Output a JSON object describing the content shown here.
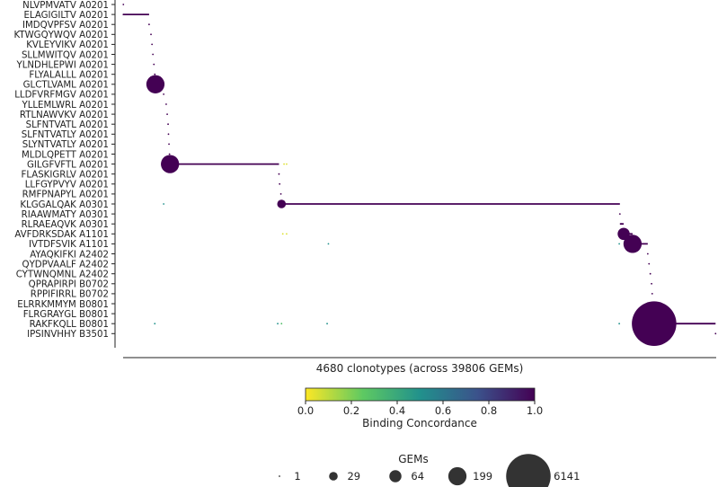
{
  "chart_data": {
    "type": "scatter",
    "xlabel": "4680 clonotypes (across 39806 GEMs)",
    "x_range": [
      0,
      4680
    ],
    "categories": [
      "NLVPMVATV A0201",
      "ELAGIGILTV A0201",
      "IMDQVPFSV A0201",
      "KTWGQYWQV A0201",
      "KVLEYVIKV A0201",
      "SLLMWITQV A0201",
      "YLNDHLEPWI A0201",
      "FLYALALLL A0201",
      "GLCTLVAML A0201",
      "LLDFVRFMGV A0201",
      "YLLEMLWRL A0201",
      "RTLNAWVKV A0201",
      "SLFNTVATL A0201",
      "SLFNTVATLY A0201",
      "SLYNTVATLY A0201",
      "MLDLQPETT A0201",
      "GILGFVFTL A0201",
      "FLASKIGRLV A0201",
      "LLFGYPVYV A0201",
      "RMFPNAPYL A0201",
      "KLGGALQAK A0301",
      "RIAAWMATY A0301",
      "RLRAEAQVK A0301",
      "AVFDRKSDAK A1101",
      "IVTDFSVIK A1101",
      "AYAQKIFKI A2402",
      "QYDPVAALF A2402",
      "CYTWNQMNL A2402",
      "QPRAPIRPI B0702",
      "RPPIFIRRL B0702",
      "ELRRKMMYM B0801",
      "FLRGRAYGL B0801",
      "RAKFKQLL B0801",
      "IPSINVHHY B3501"
    ],
    "points": [
      {
        "epitope": "NLVPMVATV A0201",
        "x": 2,
        "gems": 1,
        "concordance": 1.0
      },
      {
        "epitope": "ELAGIGILTV A0201",
        "x": 2,
        "gems": 1,
        "concordance": 1.0
      },
      {
        "epitope": "IMDQVPFSV A0201",
        "x": 205,
        "gems": 1,
        "concordance": 1.0
      },
      {
        "epitope": "KTWGQYWQV A0201",
        "x": 220,
        "gems": 1,
        "concordance": 1.0
      },
      {
        "epitope": "KVLEYVIKV A0201",
        "x": 228,
        "gems": 1,
        "concordance": 1.0
      },
      {
        "epitope": "SLLMWITQV A0201",
        "x": 235,
        "gems": 1,
        "concordance": 1.0
      },
      {
        "epitope": "YLNDHLEPWI A0201",
        "x": 243,
        "gems": 1,
        "concordance": 1.0
      },
      {
        "epitope": "FLYALALLL A0201",
        "x": 250,
        "gems": 1,
        "concordance": 1.0
      },
      {
        "epitope": "GLCTLVAML A0201",
        "x": 255,
        "gems": 199,
        "concordance": 1.0
      },
      {
        "epitope": "LLDFVRFMGV A0201",
        "x": 320,
        "gems": 1,
        "concordance": 1.0
      },
      {
        "epitope": "YLLEMLWRL A0201",
        "x": 340,
        "gems": 1,
        "concordance": 1.0
      },
      {
        "epitope": "RTLNAWVKV A0201",
        "x": 348,
        "gems": 1,
        "concordance": 1.0
      },
      {
        "epitope": "SLFNTVATL A0201",
        "x": 355,
        "gems": 1,
        "concordance": 1.0
      },
      {
        "epitope": "SLFNTVATLY A0201",
        "x": 358,
        "gems": 1,
        "concordance": 1.0
      },
      {
        "epitope": "SLYNTVATLY A0201",
        "x": 362,
        "gems": 1,
        "concordance": 1.0
      },
      {
        "epitope": "MLDLQPETT A0201",
        "x": 366,
        "gems": 1,
        "concordance": 1.0
      },
      {
        "epitope": "GILGFVFTL A0201",
        "x": 370,
        "gems": 199,
        "concordance": 1.0
      },
      {
        "epitope": "GILGFVFTL A0201",
        "x": 1270,
        "gems": 1,
        "concordance": 0.05
      },
      {
        "epitope": "GILGFVFTL A0201",
        "x": 1290,
        "gems": 1,
        "concordance": 0.05
      },
      {
        "epitope": "FLASKIGRLV A0201",
        "x": 1230,
        "gems": 1,
        "concordance": 1.0
      },
      {
        "epitope": "LLFGYPVYV A0201",
        "x": 1235,
        "gems": 1,
        "concordance": 1.0
      },
      {
        "epitope": "RMFPNAPYL A0201",
        "x": 1245,
        "gems": 1,
        "concordance": 1.0
      },
      {
        "epitope": "KLGGALQAK A0301",
        "x": 320,
        "gems": 1,
        "concordance": 0.5
      },
      {
        "epitope": "KLGGALQAK A0301",
        "x": 1250,
        "gems": 29,
        "concordance": 1.0
      },
      {
        "epitope": "RIAAWMATY A0301",
        "x": 3920,
        "gems": 1,
        "concordance": 1.0
      },
      {
        "epitope": "RLRAEAQVK A0301",
        "x": 3930,
        "gems": 1,
        "concordance": 1.0
      },
      {
        "epitope": "AVFDRKSDAK A1101",
        "x": 1260,
        "gems": 1,
        "concordance": 0.05
      },
      {
        "epitope": "AVFDRKSDAK A1101",
        "x": 1290,
        "gems": 1,
        "concordance": 0.05
      },
      {
        "epitope": "AVFDRKSDAK A1101",
        "x": 3950,
        "gems": 64,
        "concordance": 1.0
      },
      {
        "epitope": "IVTDFSVIK A1101",
        "x": 1620,
        "gems": 1,
        "concordance": 0.5
      },
      {
        "epitope": "IVTDFSVIK A1101",
        "x": 3915,
        "gems": 1,
        "concordance": 0.5
      },
      {
        "epitope": "IVTDFSVIK A1101",
        "x": 4020,
        "gems": 199,
        "concordance": 1.0
      },
      {
        "epitope": "AYAQKIFKI A2402",
        "x": 4140,
        "gems": 1,
        "concordance": 1.0
      },
      {
        "epitope": "QYDPVAALF A2402",
        "x": 4150,
        "gems": 1,
        "concordance": 1.0
      },
      {
        "epitope": "CYTWNQMNL A2402",
        "x": 4160,
        "gems": 1,
        "concordance": 1.0
      },
      {
        "epitope": "QPRAPIRPI B0702",
        "x": 4170,
        "gems": 1,
        "concordance": 1.0
      },
      {
        "epitope": "RPPIFIRRL B0702",
        "x": 4175,
        "gems": 1,
        "concordance": 1.0
      },
      {
        "epitope": "ELRRKMMYM B0801",
        "x": 4180,
        "gems": 1,
        "concordance": 1.0
      },
      {
        "epitope": "FLRGRAYGL B0801",
        "x": 4185,
        "gems": 1,
        "concordance": 1.0
      },
      {
        "epitope": "RAKFKQLL B0801",
        "x": 250,
        "gems": 1,
        "concordance": 0.5
      },
      {
        "epitope": "RAKFKQLL B0801",
        "x": 1220,
        "gems": 1,
        "concordance": 0.5
      },
      {
        "epitope": "RAKFKQLL B0801",
        "x": 1250,
        "gems": 1,
        "concordance": 0.3
      },
      {
        "epitope": "RAKFKQLL B0801",
        "x": 1610,
        "gems": 1,
        "concordance": 0.5
      },
      {
        "epitope": "RAKFKQLL B0801",
        "x": 3915,
        "gems": 1,
        "concordance": 0.5
      },
      {
        "epitope": "RAKFKQLL B0801",
        "x": 4190,
        "gems": 6141,
        "concordance": 1.0
      },
      {
        "epitope": "IPSINVHHY B3501",
        "x": 4675,
        "gems": 1,
        "concordance": 1.0
      }
    ],
    "ranges": [
      {
        "epitope": "ELAGIGILTV A0201",
        "x0": 2,
        "x1": 205
      },
      {
        "epitope": "GLCTLVAML A0201",
        "x0": 255,
        "x1": 320
      },
      {
        "epitope": "GILGFVFTL A0201",
        "x0": 370,
        "x1": 1230
      },
      {
        "epitope": "KLGGALQAK A0301",
        "x0": 1250,
        "x1": 3920
      },
      {
        "epitope": "RLRAEAQVK A0301",
        "x0": 3920,
        "x1": 3950
      },
      {
        "epitope": "AVFDRKSDAK A1101",
        "x0": 3950,
        "x1": 4020
      },
      {
        "epitope": "IVTDFSVIK A1101",
        "x0": 4020,
        "x1": 4140
      },
      {
        "epitope": "FLRGRAYGL B0801",
        "x0": 4180,
        "x1": 4200
      },
      {
        "epitope": "RAKFKQLL B0801",
        "x0": 4190,
        "x1": 4675
      }
    ],
    "colorbar": {
      "label": "Binding Concordance",
      "ticks": [
        "0.0",
        "0.2",
        "0.4",
        "0.6",
        "0.8",
        "1.0"
      ],
      "range": [
        0,
        1
      ],
      "colors": [
        "#fde725",
        "#5ec962",
        "#21918c",
        "#3b528b",
        "#440154"
      ]
    },
    "size_legend": {
      "title": "GEMs",
      "values": [
        1,
        29,
        64,
        199,
        6141
      ],
      "labels": [
        "1",
        "29",
        "64",
        "199",
        "6141"
      ],
      "color": "#333333"
    },
    "mark_color": "#440154"
  }
}
